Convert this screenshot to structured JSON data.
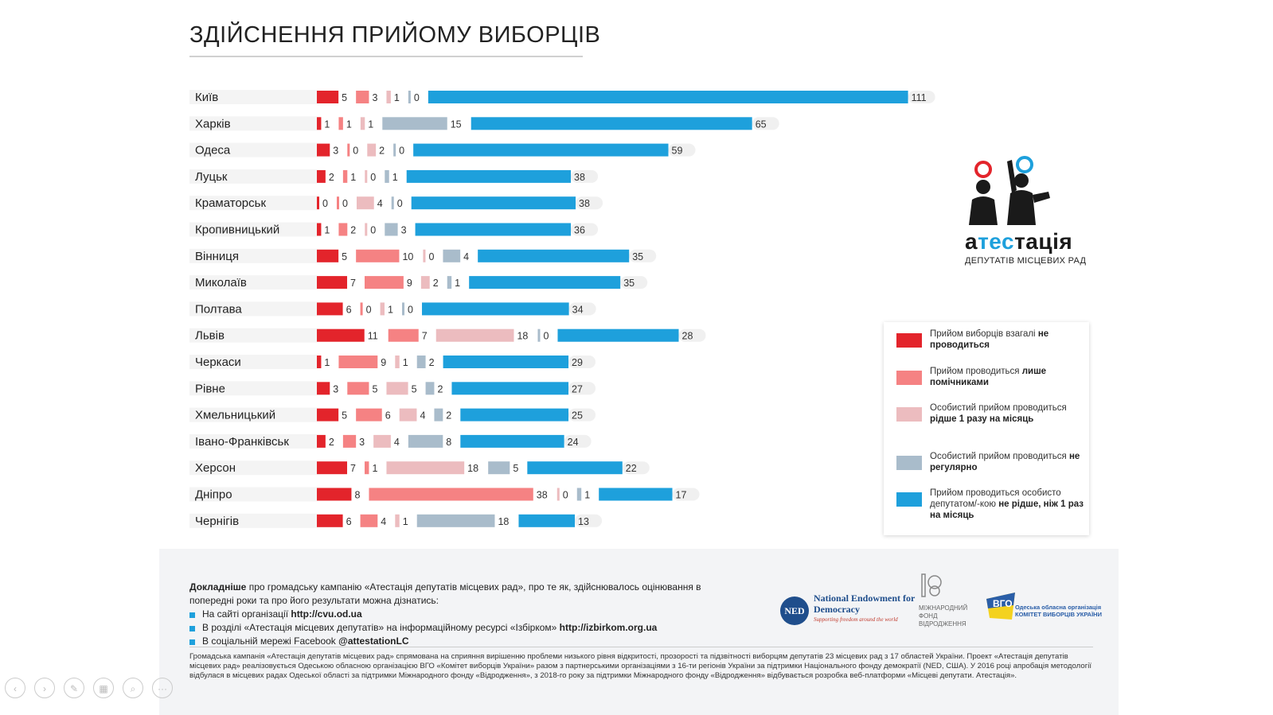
{
  "title": "ЗДІЙСНЕННЯ ПРИЙОМУ ВИБОРЦІВ",
  "colors": {
    "not_held": "#e3242b",
    "assistants_only": "#f58283",
    "rarely": "#ecbcbf",
    "irregular": "#a9bccb",
    "regular": "#1ea0dc"
  },
  "chart_data": {
    "type": "bar",
    "categories": [
      "Київ",
      "Харків",
      "Одеса",
      "Луцьк",
      "Краматорськ",
      "Кропивницький",
      "Вінниця",
      "Миколаїв",
      "Полтава",
      "Львів",
      "Черкаси",
      "Рівне",
      "Хмельницький",
      "Івано-Франківськ",
      "Херсон",
      "Дніпро",
      "Чернігів"
    ],
    "series": [
      {
        "name": "Прийом виборців взагалі не проводиться",
        "color": "#e3242b",
        "values": [
          5,
          1,
          3,
          2,
          0,
          1,
          5,
          7,
          6,
          11,
          1,
          3,
          5,
          2,
          7,
          8,
          6
        ]
      },
      {
        "name": "Прийом проводиться лише помічниками",
        "color": "#f58283",
        "values": [
          3,
          1,
          0,
          1,
          0,
          2,
          10,
          9,
          0,
          7,
          9,
          5,
          6,
          3,
          1,
          38,
          4
        ]
      },
      {
        "name": "Особистий прийом проводиться рідше 1 разу на місяць",
        "color": "#ecbcbf",
        "values": [
          1,
          1,
          2,
          0,
          4,
          0,
          0,
          2,
          1,
          18,
          1,
          5,
          4,
          4,
          18,
          0,
          1
        ]
      },
      {
        "name": "Особистий прийом проводиться не регулярно",
        "color": "#a9bccb",
        "values": [
          0,
          15,
          0,
          1,
          0,
          3,
          4,
          1,
          0,
          0,
          2,
          2,
          2,
          8,
          5,
          1,
          18
        ]
      },
      {
        "name": "Прийом проводиться особисто депутатом/-кою не рідше, ніж 1 раз на місяць",
        "color": "#1ea0dc",
        "values": [
          111,
          65,
          59,
          38,
          38,
          36,
          35,
          35,
          34,
          28,
          29,
          27,
          25,
          24,
          22,
          17,
          13
        ]
      }
    ]
  },
  "logo": {
    "word_a": "а",
    "word_hl": "тес",
    "word_b": "тація",
    "subtitle": "ДЕПУТАТІВ МІСЦЕВИХ РАД"
  },
  "legend": [
    {
      "color": "#e3242b",
      "text": "Прийом виборців взагалі ",
      "bold": "не проводиться",
      "after": ""
    },
    {
      "color": "#f58283",
      "text": "Прийом проводиться ",
      "bold": "лише помічниками",
      "after": ""
    },
    {
      "color": "#ecbcbf",
      "text": "Особистий прийом проводиться ",
      "bold": "рідше 1 разу на місяць",
      "after": ""
    },
    {
      "color": "#a9bccb",
      "text": "Особистий прийом проводиться ",
      "bold": "не регулярно",
      "after": ""
    },
    {
      "color": "#1ea0dc",
      "text": "Прийом проводиться особисто депутатом/-кою ",
      "bold": "не рідше, ніж 1 раз на місяць",
      "after": ""
    }
  ],
  "footer": {
    "lead_bold": "Докладніше",
    "lead_text": " про громадську кампанію «Атестація депутатів місцевих рад», про те як, здійснювалось оцінювання в попередні роки та про його результати можна дізнатись:",
    "items": [
      {
        "text": "На сайті організації ",
        "bold": "http://cvu.od.ua"
      },
      {
        "text": "В розділі «Атестація місцевих депутатів» на інформаційному ресурсі «Ізбірком» ",
        "bold": "http://izbirkom.org.ua"
      },
      {
        "text": "В соціальній мережі Facebook ",
        "bold": "@attestationLC"
      }
    ],
    "fine_print": "Громадська кампанія «Атестація депутатів місцевих рад» спрямована на сприяння вирішенню проблеми низького рівня відкритості, прозорості та підзвітності виборцям депутатів 23 місцевих рад з 17 областей України. Проект «Атестація депутатів місцевих рад» реалізовується Одеською обласною організацією ВГО «Комітет виборців України» разом з партнерськими організаціями з 16-ти регіонів України за підтримки Національного фонду демократії (NED, США). У 2016 році апробація методології відбулася в місцевих радах Одеської області за підтримки Міжнародного фонду «Відродження», з 2018-го року за підтримки Міжнародного фонду «Відродження» відбувається розробка веб-платформи «Місцеві депутати. Атестація»."
  },
  "partners": {
    "ned_abbr": "NED",
    "ned_name": "National Endowment for Democracy",
    "ned_tag": "Supporting freedom around the world",
    "irf_name": "МІЖНАРОДНИЙ ФОНД ВІДРОДЖЕННЯ",
    "cvu_name": "Одеська обласна організація КОМІТЕТ ВИБОРЦІВ УКРАЇНИ"
  },
  "nav_icons": [
    "prev-icon",
    "next-icon",
    "pen-icon",
    "slides-icon",
    "zoom-icon",
    "more-icon"
  ]
}
